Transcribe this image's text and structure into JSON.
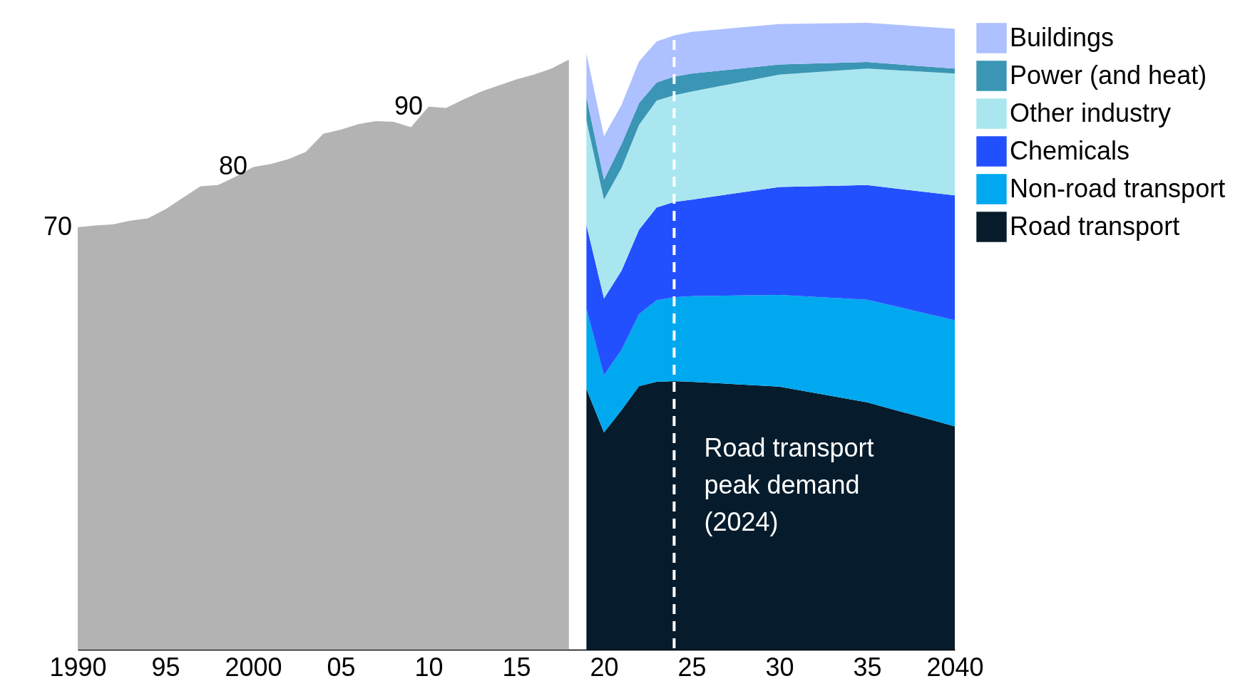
{
  "chart_data": {
    "type": "area",
    "stacked": true,
    "legend": "right",
    "grid": false,
    "tick_labels": "x",
    "xlim": [
      1990,
      2040
    ],
    "xticks": [
      1990,
      {
        "value": 1995,
        "label": "95"
      },
      2000,
      {
        "value": 2005,
        "label": "05"
      },
      {
        "value": 2010,
        "label": "10"
      },
      {
        "value": 2015,
        "label": "15"
      },
      {
        "value": 2020,
        "label": "20"
      },
      {
        "value": 2025,
        "label": "25"
      },
      {
        "value": 2030,
        "label": "30"
      },
      {
        "value": 2035,
        "label": "35"
      },
      2040
    ],
    "series": [
      {
        "name": "Road transport",
        "color": "#061c2c",
        "x": [
          2019,
          2020,
          2021,
          2022,
          2023,
          2024,
          2025,
          2030,
          2035,
          2040
        ],
        "values": [
          43.2,
          36.0,
          39.7,
          43.7,
          44.4,
          44.5,
          44.4,
          43.6,
          41.0,
          37.0
        ]
      },
      {
        "name": "Non-road transport",
        "color": "#00a8f0",
        "x": [
          2019,
          2020,
          2021,
          2022,
          2023,
          2024,
          2025,
          2030,
          2035,
          2040
        ],
        "values": [
          13.3,
          9.5,
          10.0,
          11.9,
          13.5,
          13.9,
          14.2,
          15.2,
          17.0,
          17.6
        ]
      },
      {
        "name": "Chemicals",
        "color": "#2350ff",
        "x": [
          2019,
          2020,
          2021,
          2022,
          2023,
          2024,
          2025,
          2030,
          2035,
          2040
        ],
        "values": [
          13.9,
          12.7,
          13.1,
          14.0,
          15.4,
          15.8,
          16.0,
          17.9,
          19.0,
          20.7
        ]
      },
      {
        "name": "Other industry",
        "color": "#aae6f0",
        "x": [
          2019,
          2020,
          2021,
          2022,
          2023,
          2024,
          2025,
          2030,
          2035,
          2040
        ],
        "values": [
          17.3,
          16.4,
          17.0,
          17.4,
          17.7,
          17.7,
          17.9,
          18.6,
          19.3,
          20.2
        ]
      },
      {
        "name": "Power (and heat)",
        "color": "#3a96b4",
        "x": [
          2019,
          2020,
          2021,
          2022,
          2023,
          2024,
          2025,
          2030,
          2035,
          2040
        ],
        "values": [
          3.9,
          3.3,
          4.0,
          3.6,
          3.0,
          3.1,
          3.0,
          1.7,
          1.1,
          0.8
        ]
      },
      {
        "name": "Buildings",
        "color": "#adc0ff",
        "x": [
          2019,
          2020,
          2021,
          2022,
          2023,
          2024,
          2025,
          2030,
          2035,
          2040
        ],
        "values": [
          7.2,
          7.2,
          6.5,
          6.9,
          6.8,
          6.8,
          6.9,
          6.7,
          6.5,
          6.6
        ]
      },
      {
        "color": "#b3b3b3",
        "x": [
          1990,
          1991,
          1992,
          1993,
          1994,
          1995,
          1996,
          1997,
          1998,
          1999,
          2000,
          2001,
          2002,
          2003,
          2004,
          2005,
          2006,
          2007,
          2008,
          2009,
          2010,
          2011,
          2012,
          2013,
          2014,
          2015,
          2016,
          2017,
          2018
        ],
        "values": [
          70,
          70.3,
          70.5,
          71.1,
          71.5,
          73,
          74.9,
          76.8,
          77,
          78.4,
          80,
          80.5,
          81.3,
          82.5,
          85.5,
          86.2,
          87.1,
          87.6,
          87.5,
          86.6,
          90,
          89.8,
          91.2,
          92.5,
          93.5,
          94.5,
          95.3,
          96.3,
          97.8
        ],
        "value_labels": [
          "70",
          null,
          null,
          null,
          null,
          null,
          null,
          null,
          null,
          null,
          "80",
          null,
          null,
          null,
          null,
          null,
          null,
          null,
          null,
          null,
          "90",
          null,
          null,
          null,
          null,
          null,
          null,
          null,
          null
        ]
      }
    ],
    "ref_lines": [
      {
        "axis": "x",
        "value": 2024,
        "label": "Road transport peak demand (2024)",
        "color": "#ffffff",
        "line_style": "dashed"
      }
    ]
  }
}
